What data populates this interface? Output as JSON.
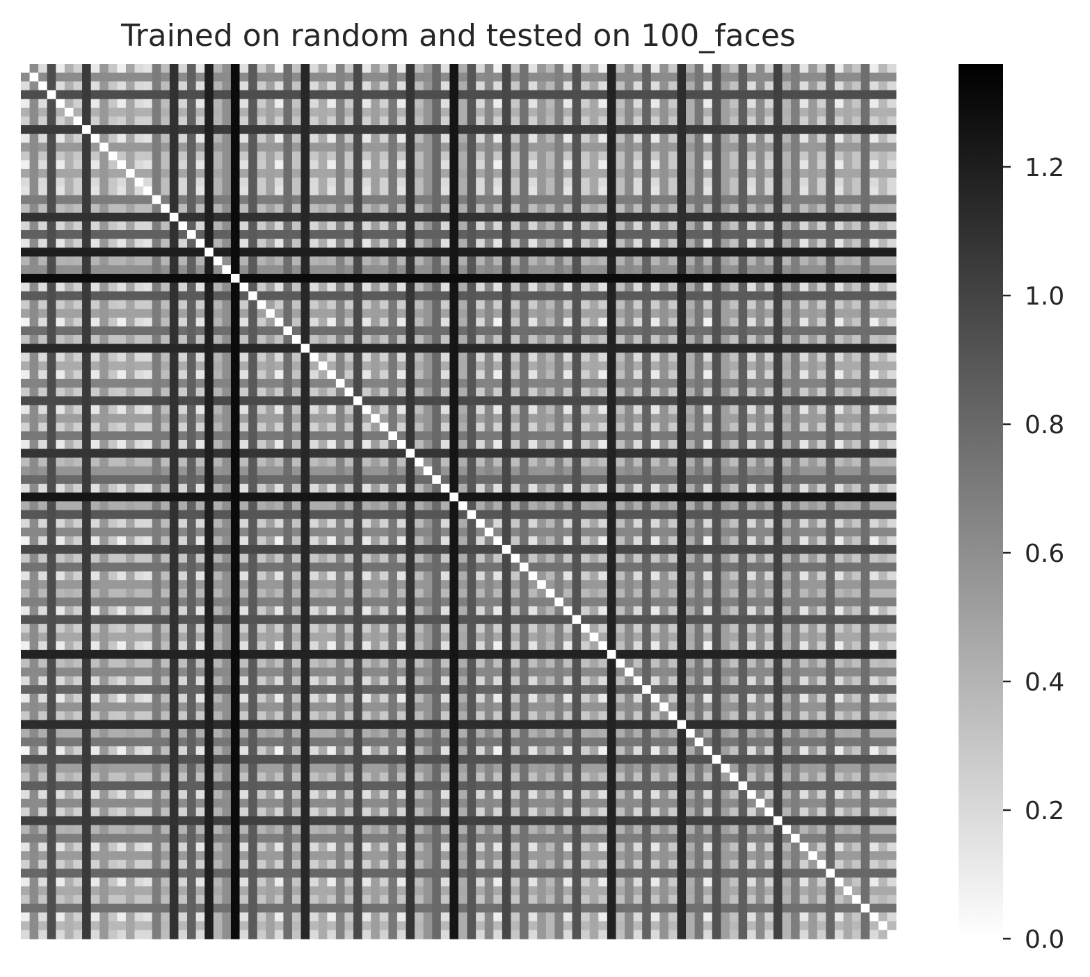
{
  "chart_data": {
    "type": "heatmap",
    "title": "Trained on random and tested on 100_faces",
    "xlabel": "",
    "ylabel": "",
    "rows": 100,
    "cols": 100,
    "x_tick_labels": [],
    "y_tick_labels": [],
    "colormap": {
      "name": "greys",
      "low_color": "#ffffff",
      "high_color": "#000000",
      "vmin": 0.0,
      "vmax": 1.36
    },
    "colorbar": {
      "ticks": [
        0.0,
        0.2,
        0.4,
        0.6,
        0.8,
        1.0,
        1.2
      ],
      "tick_labels": [
        "0.0",
        "0.2",
        "0.4",
        "0.6",
        "0.8",
        "1.0",
        "1.2"
      ]
    },
    "symmetric": true,
    "diagonal_value": 0.0,
    "profile_values": [
      0.05,
      0.62,
      0.18,
      0.95,
      0.1,
      0.42,
      0.25,
      1.05,
      0.12,
      0.55,
      0.3,
      0.08,
      0.48,
      0.2,
      0.15,
      0.7,
      0.35,
      1.1,
      0.22,
      0.85,
      0.14,
      1.2,
      0.4,
      0.6,
      1.3,
      0.16,
      0.88,
      0.27,
      0.5,
      0.06,
      0.78,
      0.32,
      1.15,
      0.19,
      0.45,
      0.09,
      0.66,
      0.28,
      0.97,
      0.13,
      0.52,
      0.24,
      0.72,
      0.11,
      1.08,
      0.36,
      0.57,
      0.8,
      0.17,
      1.25,
      0.44,
      0.9,
      0.21,
      0.64,
      0.07,
      0.98,
      0.3,
      0.75,
      0.15,
      0.55,
      0.38,
      0.68,
      0.12,
      0.92,
      0.26,
      0.47,
      0.08,
      1.18,
      0.34,
      0.63,
      0.19,
      0.83,
      0.11,
      0.58,
      0.29,
      1.12,
      0.43,
      0.73,
      0.05,
      0.93,
      0.51,
      0.33,
      0.86,
      0.17,
      0.62,
      0.23,
      1.02,
      0.4,
      0.69,
      0.14,
      0.54,
      0.25,
      0.81,
      0.1,
      0.46,
      0.31,
      0.77,
      0.09,
      0.38,
      0.2
    ]
  }
}
